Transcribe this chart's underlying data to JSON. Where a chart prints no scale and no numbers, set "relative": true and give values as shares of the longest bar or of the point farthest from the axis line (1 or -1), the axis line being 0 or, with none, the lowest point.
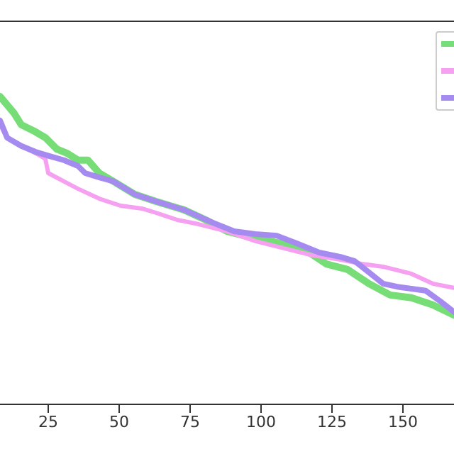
{
  "chart_data": {
    "type": "line",
    "relative": true,
    "xlim": [
      8,
      168
    ],
    "xticks": [
      25,
      50,
      75,
      100,
      125,
      150
    ],
    "grid": false,
    "marker": "none",
    "line_style": "solid",
    "series": [
      {
        "color": "#77dd77",
        "x": [
          8,
          13,
          15.5,
          20.5,
          24,
          28,
          31.5,
          35.5,
          39,
          43,
          48,
          55.5,
          63,
          73,
          80.5,
          88,
          98,
          108,
          115.5,
          123,
          130.5,
          138,
          145.5,
          153,
          160.5,
          168
        ],
        "values": [
          1.0,
          0.945,
          0.908,
          0.885,
          0.866,
          0.829,
          0.816,
          0.793,
          0.793,
          0.751,
          0.724,
          0.682,
          0.659,
          0.631,
          0.599,
          0.562,
          0.539,
          0.521,
          0.502,
          0.456,
          0.438,
          0.392,
          0.355,
          0.346,
          0.323,
          0.29
        ]
      },
      {
        "color": "#f5a0f0",
        "x": [
          8,
          10.5,
          15.5,
          20.5,
          24,
          25,
          30.5,
          35.5,
          43,
          50.5,
          58,
          63,
          70.5,
          78,
          88,
          98,
          108,
          118,
          128,
          135.5,
          143,
          153,
          160.5,
          168
        ],
        "values": [
          0.908,
          0.866,
          0.839,
          0.816,
          0.797,
          0.751,
          0.724,
          0.7,
          0.668,
          0.645,
          0.636,
          0.622,
          0.599,
          0.585,
          0.562,
          0.53,
          0.507,
          0.484,
          0.47,
          0.456,
          0.447,
          0.424,
          0.392,
          0.378
        ]
      },
      {
        "color": "#a58bf0",
        "x": [
          8,
          10.5,
          15.5,
          20.5,
          25.5,
          30.5,
          35.5,
          38,
          43,
          48,
          55.5,
          63,
          73,
          83,
          90.5,
          98,
          105.5,
          113,
          120.5,
          128,
          133,
          138,
          143,
          148,
          158,
          163,
          168
        ],
        "values": [
          0.922,
          0.866,
          0.839,
          0.82,
          0.806,
          0.793,
          0.774,
          0.751,
          0.737,
          0.724,
          0.682,
          0.659,
          0.631,
          0.59,
          0.562,
          0.553,
          0.548,
          0.521,
          0.493,
          0.479,
          0.465,
          0.429,
          0.392,
          0.382,
          0.369,
          0.336,
          0.3
        ]
      }
    ]
  }
}
